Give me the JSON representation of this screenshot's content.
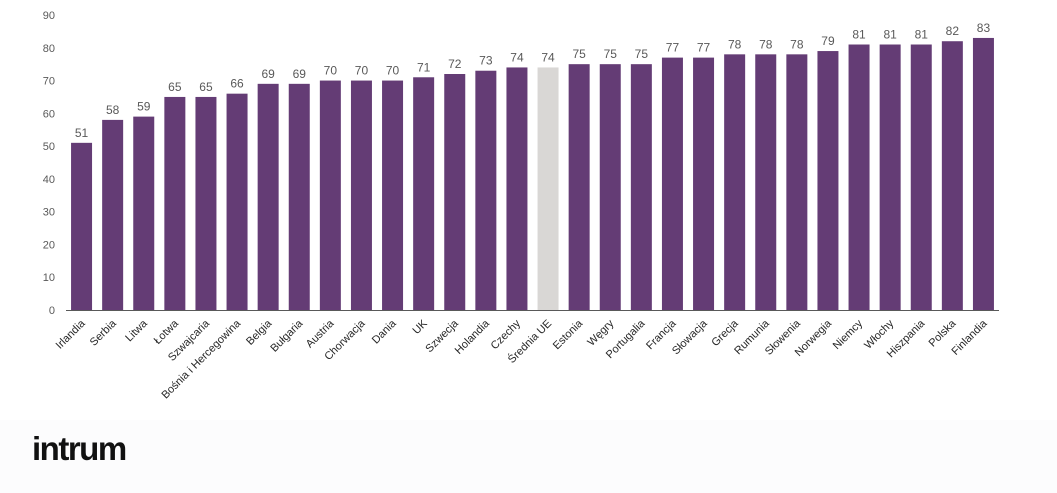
{
  "brand": {
    "logo_text": "intrum"
  },
  "colors": {
    "bar": "#643c75",
    "highlight": "#d9d7d5",
    "axis": "#595959"
  },
  "chart_data": {
    "type": "bar",
    "title": "",
    "xlabel": "",
    "ylabel": "",
    "ylim": [
      0,
      90
    ],
    "yticks": [
      0,
      10,
      20,
      30,
      40,
      50,
      60,
      70,
      80,
      90
    ],
    "grid": false,
    "highlight_category": "Średnia UE",
    "categories": [
      "Irlandia",
      "Serbia",
      "Litwa",
      "Łotwa",
      "Szwajcaria",
      "Bośnia i Hercegowina",
      "Belgia",
      "Bułgaria",
      "Austria",
      "Chorwacja",
      "Dania",
      "UK",
      "Szwecja",
      "Holandia",
      "Czechy",
      "Średnia UE",
      "Estonia",
      "Węgry",
      "Portugalia",
      "Francja",
      "Słowacja",
      "Grecja",
      "Rumunia",
      "Słowenia",
      "Norwegia",
      "Niemcy",
      "Włochy",
      "Hiszpania",
      "Polska",
      "Finlandia"
    ],
    "values": [
      51,
      58,
      59,
      65,
      65,
      66,
      69,
      69,
      70,
      70,
      70,
      71,
      72,
      73,
      74,
      74,
      75,
      75,
      75,
      77,
      77,
      78,
      78,
      78,
      79,
      81,
      81,
      81,
      82,
      83
    ]
  }
}
